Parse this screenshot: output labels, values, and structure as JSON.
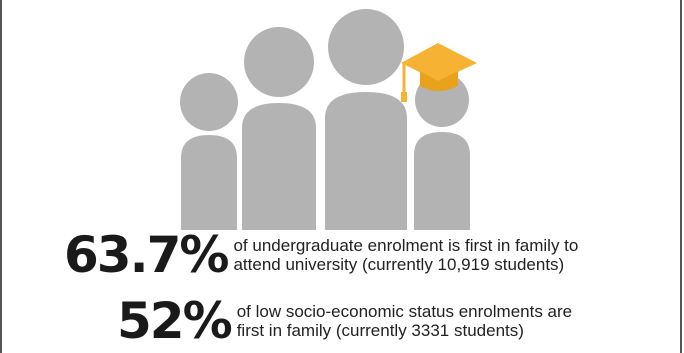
{
  "colors": {
    "figure_gray": "#b3b3b3",
    "cap_gold": "#f5b233",
    "text_dark": "#1a1a1a",
    "border": "#555555"
  },
  "illustration": {
    "icon": "family-with-graduate-icon"
  },
  "stats": [
    {
      "value": "63.7%",
      "line1": "of undergraduate enrolment is first in family to",
      "line2": "attend university (currently 10,919 students)"
    },
    {
      "value": "52%",
      "line1": "of low socio-economic status enrolments are",
      "line2": "first in family (currently 3331 students)"
    }
  ]
}
